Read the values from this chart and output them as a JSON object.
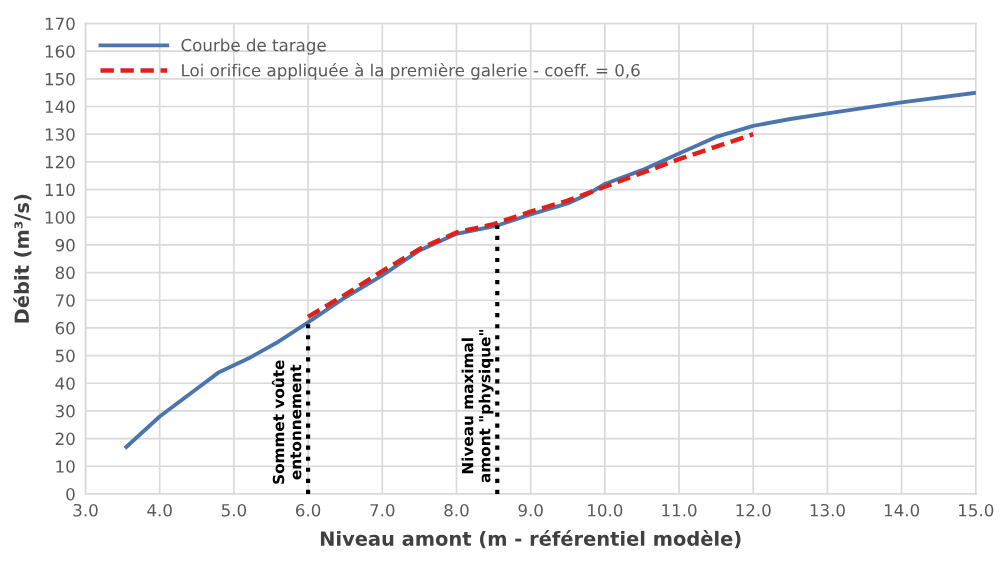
{
  "chart_data": {
    "type": "line",
    "xlabel": "Niveau amont (m - référentiel modèle)",
    "ylabel": "Débit (m³/s)",
    "series": [
      {
        "name": "Courbe de tarage",
        "color": "#4a76ad",
        "line_style": "solid",
        "x": [
          3.55,
          4.0,
          4.5,
          4.8,
          5.2,
          5.6,
          6.0,
          6.5,
          7.0,
          7.5,
          8.0,
          8.55,
          9.0,
          9.5,
          9.75,
          10.0,
          10.5,
          11.0,
          11.5,
          12.0,
          12.5,
          13.0,
          14.0,
          15.0
        ],
        "values": [
          17,
          28,
          38,
          44,
          49,
          55,
          62,
          71,
          79,
          88,
          94,
          97,
          101,
          105,
          108,
          112,
          117,
          123,
          129,
          133,
          135.5,
          137.5,
          141.5,
          145
        ]
      },
      {
        "name": "Loi orifice appliquée à la première galerie - coeff. = 0,6",
        "color": "#e0201b",
        "line_style": "dashed",
        "x": [
          6.0,
          6.5,
          7.0,
          7.5,
          8.0,
          8.5,
          9.0,
          9.5,
          10.0,
          10.5,
          11.0,
          11.5,
          12.0
        ],
        "values": [
          64,
          72,
          80.5,
          88.5,
          94.5,
          97.5,
          102,
          106,
          111,
          116,
          121,
          125.5,
          130
        ]
      }
    ],
    "ref_lines": [
      {
        "axis": "x",
        "value": 6.0,
        "label": "Sommet voûte\nentonnement",
        "color": "#000000",
        "line_style": "dotted"
      },
      {
        "axis": "x",
        "value": 8.55,
        "label": "Niveau maximal\namont \"physique\"",
        "color": "#000000",
        "line_style": "dotted"
      }
    ],
    "xlim": [
      3.0,
      15.0
    ],
    "ylim": [
      0,
      170
    ],
    "xticks": [
      {
        "value": 3,
        "label": "3.0"
      },
      {
        "value": 4,
        "label": "4.0"
      },
      {
        "value": 5,
        "label": "5.0"
      },
      {
        "value": 6,
        "label": "6.0"
      },
      {
        "value": 7,
        "label": "7.0"
      },
      {
        "value": 8,
        "label": "8.0"
      },
      {
        "value": 9,
        "label": "9.0"
      },
      {
        "value": 10,
        "label": "10.0"
      },
      {
        "value": 11,
        "label": "11.0"
      },
      {
        "value": 12,
        "label": "12.0"
      },
      {
        "value": 13,
        "label": "13.0"
      },
      {
        "value": 14,
        "label": "14.0"
      },
      {
        "value": 15,
        "label": "15.0"
      }
    ],
    "yticks": [
      0,
      10,
      20,
      30,
      40,
      50,
      60,
      70,
      80,
      90,
      100,
      110,
      120,
      130,
      140,
      150,
      160,
      170
    ],
    "grid": true,
    "legend": "top left",
    "marker": "none"
  }
}
